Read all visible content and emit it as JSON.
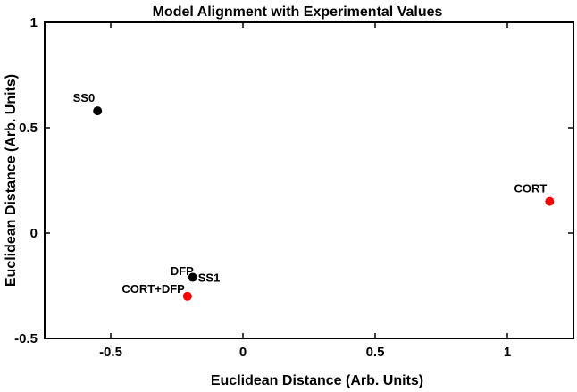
{
  "chart_data": {
    "type": "scatter",
    "title": "Model Alignment with Experimental Values",
    "xlabel": "Euclidean Distance (Arb. Units)",
    "ylabel": "Euclidean Distance (Arb. Units)",
    "xlim": [
      -0.75,
      1.25
    ],
    "ylim": [
      -0.5,
      1.0
    ],
    "xticks": [
      -0.5,
      0,
      0.5,
      1
    ],
    "xtick_labels": [
      "-0.5",
      "0",
      "0.5",
      "1"
    ],
    "yticks": [
      -0.5,
      0,
      0.5,
      1
    ],
    "ytick_labels": [
      "-0.5",
      "0",
      "0.5",
      "1"
    ],
    "grid": false,
    "points": [
      {
        "label": "SS0",
        "x": -0.55,
        "y": 0.58,
        "color": "#000000",
        "label_pos": "upper-left"
      },
      {
        "label": "SS1",
        "x": -0.19,
        "y": -0.21,
        "color": "#000000",
        "label_pos": "right"
      },
      {
        "label": "DFP",
        "x": -0.21,
        "y": -0.3,
        "color": "#ff0000",
        "label_pos": "upper-left"
      },
      {
        "label": "CORT+DFP",
        "x": -0.21,
        "y": -0.3,
        "color": "#ff0000",
        "label_pos": "left"
      },
      {
        "label": "CORT",
        "x": 1.16,
        "y": 0.15,
        "color": "#ff0000",
        "label_pos": "upper-left"
      }
    ]
  }
}
